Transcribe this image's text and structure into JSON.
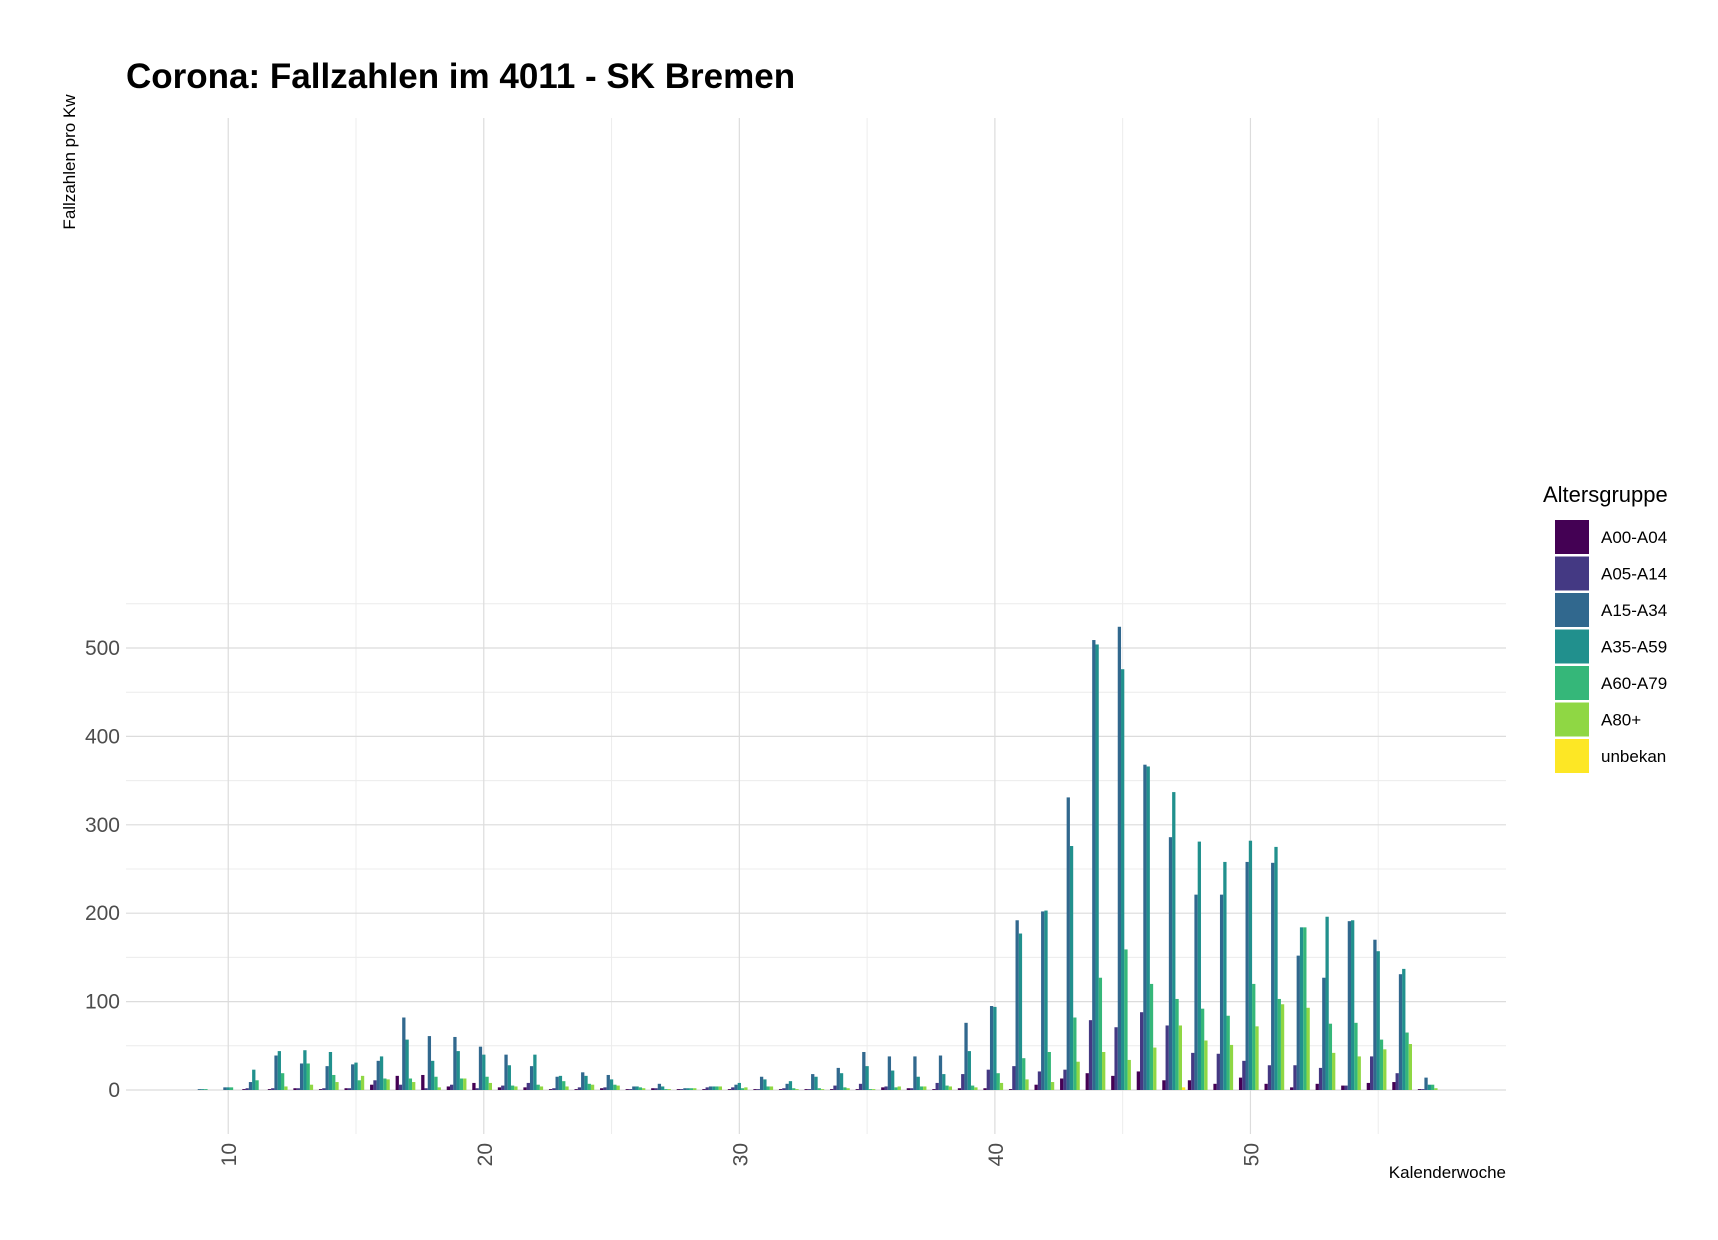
{
  "chart_data": {
    "type": "bar",
    "title": "Corona: Fallzahlen im 4011 - SK Bremen",
    "xlabel": "Kalenderwoche",
    "ylabel": "Fallzahlen pro Kw",
    "xlim": [
      6,
      60
    ],
    "ylim": [
      0,
      550
    ],
    "x_ticks": [
      10,
      20,
      30,
      40,
      50
    ],
    "y_ticks": [
      0,
      100,
      200,
      300,
      400,
      500
    ],
    "grid": true,
    "legend_title": "Altersgruppe",
    "legend_position": "right",
    "x": [
      9,
      10,
      11,
      12,
      13,
      14,
      15,
      16,
      17,
      18,
      19,
      20,
      21,
      22,
      23,
      24,
      25,
      26,
      27,
      28,
      29,
      30,
      31,
      32,
      33,
      34,
      35,
      36,
      37,
      38,
      39,
      40,
      41,
      42,
      43,
      44,
      45,
      46,
      47,
      48,
      49,
      50,
      51,
      52,
      53,
      54,
      55,
      56,
      57
    ],
    "series": [
      {
        "name": "A00-A04",
        "color": "#440154",
        "values": [
          0,
          0,
          1,
          1,
          2,
          1,
          2,
          6,
          16,
          17,
          4,
          8,
          3,
          3,
          1,
          1,
          2,
          1,
          2,
          1,
          1,
          1,
          1,
          1,
          1,
          1,
          1,
          3,
          2,
          1,
          2,
          2,
          1,
          6,
          13,
          19,
          16,
          21,
          11,
          11,
          7,
          14,
          7,
          3,
          7,
          5,
          8,
          9,
          1
        ]
      },
      {
        "name": "A05-A14",
        "color": "#443983",
        "values": [
          0,
          0,
          2,
          2,
          2,
          2,
          2,
          11,
          6,
          2,
          6,
          2,
          5,
          8,
          2,
          3,
          3,
          1,
          2,
          1,
          3,
          3,
          1,
          2,
          1,
          5,
          7,
          4,
          2,
          8,
          18,
          23,
          27,
          21,
          23,
          79,
          71,
          88,
          73,
          42,
          41,
          33,
          28,
          28,
          25,
          5,
          38,
          19,
          1
        ]
      },
      {
        "name": "A15-A34",
        "color": "#31688e",
        "values": [
          1,
          3,
          9,
          39,
          30,
          27,
          29,
          33,
          82,
          61,
          60,
          49,
          40,
          27,
          15,
          20,
          17,
          4,
          7,
          2,
          4,
          6,
          15,
          7,
          18,
          25,
          43,
          38,
          38,
          39,
          76,
          95,
          192,
          202,
          331,
          509,
          524,
          368,
          286,
          221,
          221,
          258,
          257,
          152,
          127,
          191,
          170,
          131,
          14
        ]
      },
      {
        "name": "A35-A59",
        "color": "#21908d",
        "values": [
          1,
          3,
          23,
          44,
          45,
          43,
          31,
          38,
          57,
          33,
          44,
          40,
          28,
          40,
          16,
          16,
          12,
          4,
          4,
          2,
          4,
          8,
          12,
          10,
          15,
          19,
          27,
          22,
          15,
          18,
          44,
          94,
          177,
          203,
          276,
          504,
          476,
          366,
          337,
          281,
          258,
          282,
          275,
          184,
          196,
          192,
          157,
          137,
          6
        ]
      },
      {
        "name": "A60-A79",
        "color": "#35b779",
        "values": [
          1,
          3,
          11,
          19,
          30,
          17,
          11,
          13,
          13,
          15,
          13,
          15,
          5,
          6,
          10,
          7,
          6,
          3,
          1,
          2,
          4,
          2,
          4,
          2,
          2,
          3,
          1,
          3,
          4,
          5,
          5,
          19,
          36,
          43,
          82,
          127,
          159,
          120,
          103,
          92,
          84,
          120,
          103,
          184,
          75,
          76,
          57,
          65,
          6
        ]
      },
      {
        "name": "A80+",
        "color": "#8fd744",
        "values": [
          0,
          0,
          0,
          4,
          6,
          9,
          16,
          12,
          9,
          3,
          13,
          8,
          4,
          4,
          4,
          6,
          5,
          2,
          1,
          2,
          4,
          3,
          4,
          1,
          1,
          2,
          1,
          4,
          4,
          4,
          3,
          8,
          12,
          9,
          32,
          43,
          34,
          48,
          73,
          56,
          51,
          72,
          97,
          93,
          42,
          38,
          46,
          52,
          2
        ]
      },
      {
        "name": "unbekan",
        "color": "#fde725",
        "values": [
          0,
          0,
          0,
          0,
          0,
          0,
          0,
          0,
          0,
          0,
          0,
          0,
          0,
          0,
          0,
          0,
          0,
          0,
          0,
          0,
          0,
          0,
          0,
          0,
          0,
          0,
          0,
          0,
          0,
          0,
          0,
          0,
          0,
          0,
          0,
          0,
          0,
          0,
          3,
          0,
          0,
          0,
          0,
          0,
          0,
          0,
          0,
          0,
          0
        ]
      }
    ]
  }
}
